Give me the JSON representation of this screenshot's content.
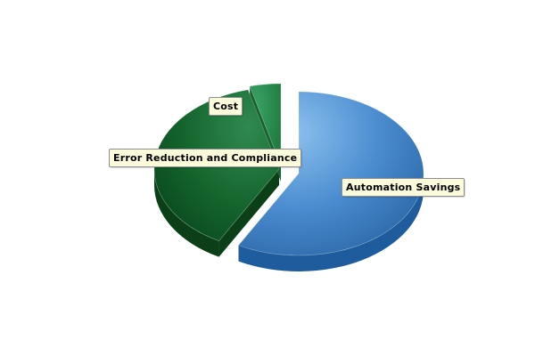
{
  "chart_data": {
    "type": "pie",
    "title": "",
    "style": "3d-exploded",
    "slices": [
      {
        "label": "Automation Savings",
        "value": 58,
        "color": "#4a8fd0"
      },
      {
        "label": "Error Reduction and Compliance",
        "value": 38,
        "color": "#1b6f34"
      },
      {
        "label": "Cost",
        "value": 4,
        "color": "#2a9a55"
      }
    ],
    "legend": "none"
  }
}
